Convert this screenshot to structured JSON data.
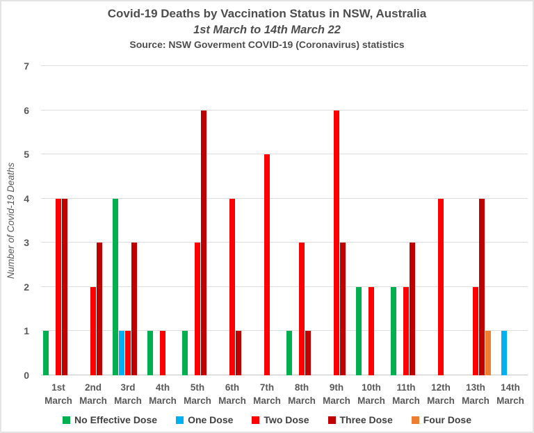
{
  "header": {
    "title": "Covid-19 Deaths by Vaccination Status in NSW, Australia",
    "subtitle": "1st March to 14th March 22",
    "source": "Source: NSW Goverment COVID-19 (Coronavirus) statistics"
  },
  "chart_data": {
    "type": "bar",
    "title": "Covid-19 Deaths by Vaccination Status in NSW, Australia",
    "subtitle": "1st March to 14th March 22",
    "source": "Source: NSW Goverment COVID-19 (Coronavirus) statistics",
    "xlabel": "",
    "ylabel": "Number of Covid-19 Deaths",
    "ylim": [
      0,
      7
    ],
    "yticks": [
      0,
      1,
      2,
      3,
      4,
      5,
      6,
      7
    ],
    "grid": true,
    "legend_position": "bottom",
    "categories": [
      [
        "1st",
        "March"
      ],
      [
        "2nd",
        "March"
      ],
      [
        "3rd",
        "March"
      ],
      [
        "4th",
        "March"
      ],
      [
        "5th",
        "March"
      ],
      [
        "6th",
        "March"
      ],
      [
        "7th",
        "March"
      ],
      [
        "8th",
        "March"
      ],
      [
        "9th",
        "March"
      ],
      [
        "10th",
        "March"
      ],
      [
        "11th",
        "March"
      ],
      [
        "12th",
        "March"
      ],
      [
        "13th",
        "March"
      ],
      [
        "14th",
        "March"
      ]
    ],
    "series": [
      {
        "name": "No Effective Dose",
        "color": "#00B050",
        "values": [
          1,
          0,
          4,
          1,
          1,
          0,
          0,
          1,
          0,
          2,
          2,
          0,
          0,
          0
        ]
      },
      {
        "name": "One Dose",
        "color": "#00B0F0",
        "values": [
          0,
          0,
          1,
          0,
          0,
          0,
          0,
          0,
          0,
          0,
          0,
          0,
          0,
          1
        ]
      },
      {
        "name": "Two Dose",
        "color": "#FF0000",
        "values": [
          4,
          2,
          1,
          1,
          3,
          4,
          5,
          3,
          6,
          2,
          2,
          4,
          2,
          0
        ]
      },
      {
        "name": "Three Dose",
        "color": "#C00000",
        "values": [
          4,
          3,
          3,
          0,
          6,
          1,
          0,
          1,
          3,
          0,
          3,
          0,
          4,
          0
        ]
      },
      {
        "name": "Four Dose",
        "color": "#ED7D31",
        "values": [
          0,
          0,
          0,
          0,
          0,
          0,
          0,
          0,
          0,
          0,
          0,
          0,
          1,
          0
        ]
      }
    ],
    "colors": {
      "no_effective_dose": "#00B050",
      "one_dose": "#00B0F0",
      "two_dose": "#FF0000",
      "three_dose": "#C00000",
      "four_dose": "#ED7D31",
      "gridline": "#DDDDDD",
      "axis_line": "#C6C6C6",
      "text": "#595959"
    }
  }
}
